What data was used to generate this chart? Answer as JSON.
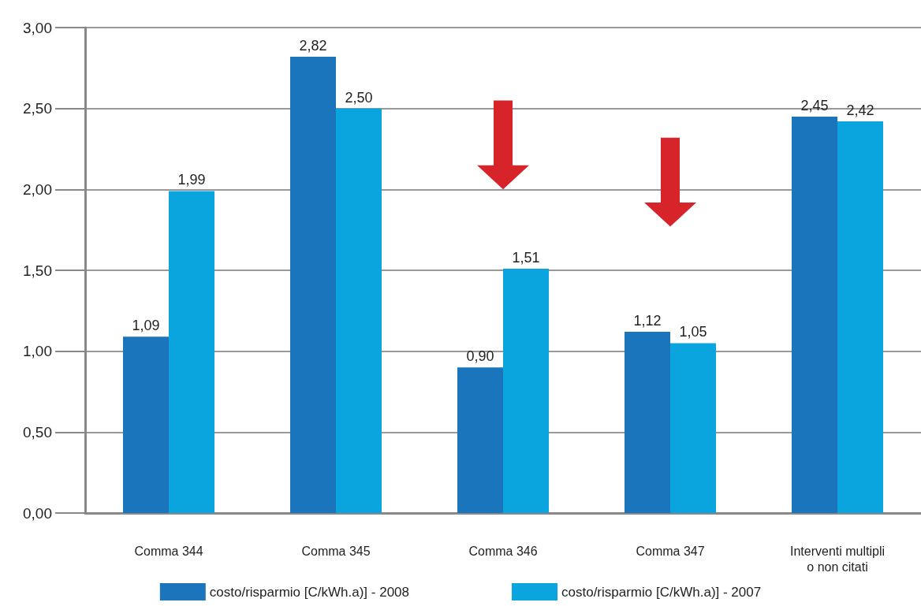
{
  "chart_data": {
    "type": "bar",
    "categories": [
      "Comma 344",
      "Comma 345",
      "Comma 346",
      "Comma 347",
      "Interventi multipli\no non citati"
    ],
    "series": [
      {
        "name": "costo/risparmio [C/kWh.a)] - 2008",
        "color": "#1b75bc",
        "values": [
          1.09,
          2.82,
          0.9,
          1.12,
          2.45
        ],
        "value_labels": [
          "1,09",
          "2,82",
          "0,90",
          "1,12",
          "2,45"
        ]
      },
      {
        "name": "costo/risparmio [C/kWh.a)] - 2007",
        "color": "#0aa5df",
        "values": [
          1.99,
          2.5,
          1.51,
          1.05,
          2.42
        ],
        "value_labels": [
          "1,99",
          "2,50",
          "1,51",
          "1,05",
          "2,42"
        ]
      }
    ],
    "ylim": [
      0,
      3
    ],
    "yticks": [
      {
        "value": 0,
        "label": "0,00"
      },
      {
        "value": 0.5,
        "label": "0,50"
      },
      {
        "value": 1,
        "label": "1,00"
      },
      {
        "value": 1.5,
        "label": "1,50"
      },
      {
        "value": 2,
        "label": "2,00"
      },
      {
        "value": 2.5,
        "label": "2,50"
      },
      {
        "value": 3,
        "label": "3,00"
      }
    ],
    "grid": "y",
    "legend": "bottom"
  }
}
